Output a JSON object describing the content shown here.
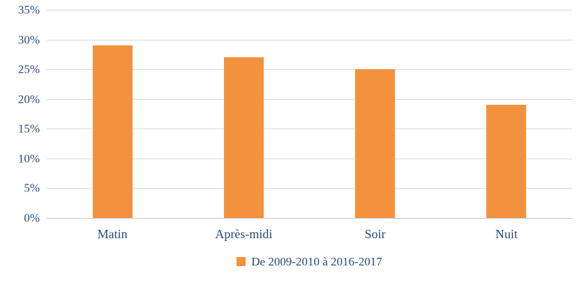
{
  "chart_data": {
    "type": "bar",
    "title": "",
    "xlabel": "",
    "ylabel": "",
    "categories": [
      "Matin",
      "Après-midi",
      "Soir",
      "Nuit"
    ],
    "values": [
      29,
      27,
      25,
      19
    ],
    "value_unit": "%",
    "ylim": [
      0,
      35
    ],
    "ytick_step": 5,
    "yticks": [
      {
        "value": 0,
        "label": "0%"
      },
      {
        "value": 5,
        "label": "5%"
      },
      {
        "value": 10,
        "label": "10%"
      },
      {
        "value": 15,
        "label": "15%"
      },
      {
        "value": 20,
        "label": "20%"
      },
      {
        "value": 25,
        "label": "25%"
      },
      {
        "value": 30,
        "label": "30%"
      },
      {
        "value": 35,
        "label": "35%"
      }
    ],
    "grid": true,
    "legend_position": "bottom",
    "legend": [
      {
        "label": "De 2009-2010 à 2016-2017",
        "color": "#F4913D"
      }
    ],
    "colors": {
      "bar": "#F4913D",
      "text": "#26497C",
      "gridline": "#D9D9D9"
    }
  }
}
